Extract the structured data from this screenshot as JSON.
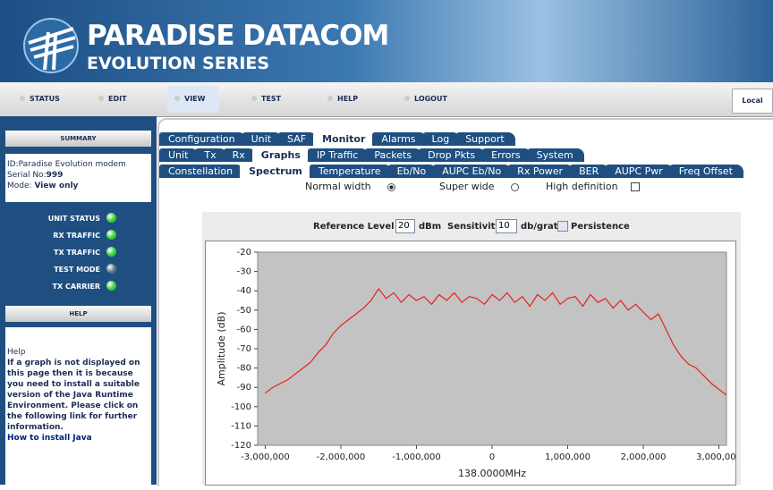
{
  "header": {
    "brand": "PARADISE DATACOM",
    "series": "EVOLUTION SERIES"
  },
  "nav": {
    "items": [
      "STATUS",
      "EDIT",
      "VIEW",
      "TEST",
      "HELP",
      "LOGOUT"
    ],
    "active": 2,
    "mode": "Local"
  },
  "sidebar": {
    "summary_title": "SUMMARY",
    "id_label": "ID:",
    "id": "Paradise Evolution modem",
    "serial_label": "Serial No:",
    "serial": "999",
    "mode_label": "Mode:",
    "mode": "View only",
    "indicators": [
      {
        "label": "UNIT STATUS",
        "color": "#2fd02f"
      },
      {
        "label": "RX TRAFFIC",
        "color": "#2fd02f"
      },
      {
        "label": "TX TRAFFIC",
        "color": "#2fd02f"
      },
      {
        "label": "TEST MODE",
        "color": "#5a7088"
      },
      {
        "label": "TX CARRIER",
        "color": "#2fd02f"
      }
    ],
    "help_title": "HELP",
    "help": {
      "title": "Help",
      "text": "If a graph is not displayed on this page then it is because you need to install a suitable version of the Java Runtime Environment. Please click on the following link for further information.",
      "link": "How to install Java"
    }
  },
  "tabs": {
    "rows": [
      [
        "Configuration",
        "Unit",
        "SAF",
        "Monitor",
        "Alarms",
        "Log",
        "Support"
      ],
      [
        "Unit",
        "Tx",
        "Rx",
        "Graphs",
        "IP Traffic",
        "Packets",
        "Drop Pkts",
        "Errors",
        "System"
      ],
      [
        "Constellation",
        "Spectrum",
        "Temperature",
        "Eb/No",
        "AUPC Eb/No",
        "Rx Power",
        "BER",
        "AUPC Pwr",
        "Freq Offset"
      ]
    ],
    "active": [
      3,
      3,
      1
    ]
  },
  "options": [
    {
      "label": "Normal width",
      "kind": "radio",
      "checked": true
    },
    {
      "label": "Super wide",
      "kind": "radio",
      "checked": false
    },
    {
      "label": "High definition",
      "kind": "checkbox",
      "checked": false
    }
  ],
  "controls": {
    "ref_label": "Reference Level -",
    "ref_value": "20",
    "ref_unit": "dBm",
    "sens_label": "Sensitivity",
    "sens_value": "10",
    "sens_unit": "db/grat",
    "persistence": "Persistence"
  },
  "chart_data": {
    "type": "line",
    "x_label": "138.0000MHz",
    "y_label": "Amplitude (dB)",
    "x": [
      -3000000,
      -2900000,
      -2800000,
      -2700000,
      -2600000,
      -2500000,
      -2400000,
      -2300000,
      -2200000,
      -2100000,
      -2000000,
      -1900000,
      -1800000,
      -1700000,
      -1600000,
      -1500000,
      -1400000,
      -1300000,
      -1200000,
      -1100000,
      -1000000,
      -900000,
      -800000,
      -700000,
      -600000,
      -500000,
      -400000,
      -300000,
      -200000,
      -100000,
      0,
      100000,
      200000,
      300000,
      400000,
      500000,
      600000,
      700000,
      800000,
      900000,
      1000000,
      1100000,
      1200000,
      1300000,
      1400000,
      1500000,
      1600000,
      1700000,
      1800000,
      1900000,
      2000000,
      2100000,
      2200000,
      2300000,
      2400000,
      2500000,
      2600000,
      2700000,
      2800000,
      2900000,
      3000000,
      3100000
    ],
    "series": [
      {
        "color": "#e8201c",
        "values": [
          -93,
          -90,
          -88,
          -86,
          -83,
          -80,
          -77,
          -72,
          -68,
          -62,
          -58,
          -55,
          -52,
          -49,
          -45,
          -39,
          -44,
          -41,
          -46,
          -42,
          -45,
          -43,
          -47,
          -42,
          -45,
          -41,
          -46,
          -43,
          -44,
          -47,
          -42,
          -45,
          -41,
          -46,
          -43,
          -48,
          -42,
          -45,
          -41,
          -47,
          -44,
          -43,
          -48,
          -42,
          -46,
          -44,
          -49,
          -45,
          -50,
          -47,
          -51,
          -55,
          -52,
          -60,
          -68,
          -74,
          -78,
          -80,
          -84,
          -88,
          -91,
          -94
        ]
      }
    ],
    "xlim": [
      -3100000,
      3100000
    ],
    "ylim": [
      -120,
      -20
    ],
    "xticks": [
      {
        "value": -3000000,
        "label": "-3,000,000"
      },
      {
        "value": -2000000,
        "label": "-2,000,000"
      },
      {
        "value": -1000000,
        "label": "-1,000,000"
      },
      0,
      {
        "value": 1000000,
        "label": "1,000,000"
      },
      {
        "value": 2000000,
        "label": "2,000,000"
      },
      {
        "value": 3000000,
        "label": "3,000,000"
      }
    ],
    "yticks": [
      -120,
      -110,
      -100,
      -90,
      -80,
      -70,
      -60,
      -50,
      -40,
      -30,
      -20
    ],
    "background": "#c3c3c3"
  }
}
